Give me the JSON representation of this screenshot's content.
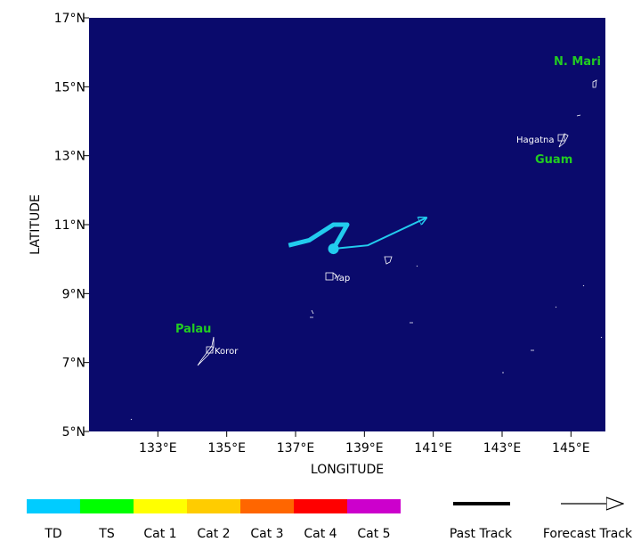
{
  "map": {
    "xlim": [
      131,
      146
    ],
    "ylim": [
      5,
      17
    ],
    "xticks": [
      {
        "value": 133,
        "label": "133°E"
      },
      {
        "value": 135,
        "label": "135°E"
      },
      {
        "value": 137,
        "label": "137°E"
      },
      {
        "value": 139,
        "label": "139°E"
      },
      {
        "value": 141,
        "label": "141°E"
      },
      {
        "value": 143,
        "label": "143°E"
      },
      {
        "value": 145,
        "label": "145°E"
      }
    ],
    "yticks": [
      {
        "value": 5,
        "label": "5°N"
      },
      {
        "value": 7,
        "label": "7°N"
      },
      {
        "value": 9,
        "label": "9°N"
      },
      {
        "value": 11,
        "label": "11°N"
      },
      {
        "value": 13,
        "label": "13°N"
      },
      {
        "value": 15,
        "label": "15°N"
      },
      {
        "value": 17,
        "label": "17°N"
      }
    ],
    "xlabel": "LONGITUDE",
    "ylabel": "LATITUDE",
    "background": "#0a0a6c",
    "places": {
      "palau": "Palau",
      "koror": "Koror",
      "yap": "Yap",
      "guam": "Guam",
      "hagatna": "Hagatna",
      "n_mari": "N. Mari"
    }
  },
  "track": {
    "color": "#22ccee",
    "past": {
      "lon": [
        136.8,
        137.4,
        138.1,
        138.5,
        138.1
      ],
      "lat": [
        10.4,
        10.55,
        11.0,
        11.0,
        10.3
      ]
    },
    "forecast": {
      "lon": [
        138.1,
        139.1,
        140.8
      ],
      "lat": [
        10.3,
        10.4,
        11.2
      ]
    }
  },
  "legend": {
    "categories": [
      {
        "label": "TD",
        "color": "#00ccff"
      },
      {
        "label": "TS",
        "color": "#00ff00"
      },
      {
        "label": "Cat 1",
        "color": "#ffff00"
      },
      {
        "label": "Cat 2",
        "color": "#ffcc00"
      },
      {
        "label": "Cat 3",
        "color": "#ff6600"
      },
      {
        "label": "Cat 4",
        "color": "#ff0000"
      },
      {
        "label": "Cat 5",
        "color": "#cc00cc"
      }
    ],
    "past_track": "Past Track",
    "forecast_track": "Forecast Track"
  }
}
